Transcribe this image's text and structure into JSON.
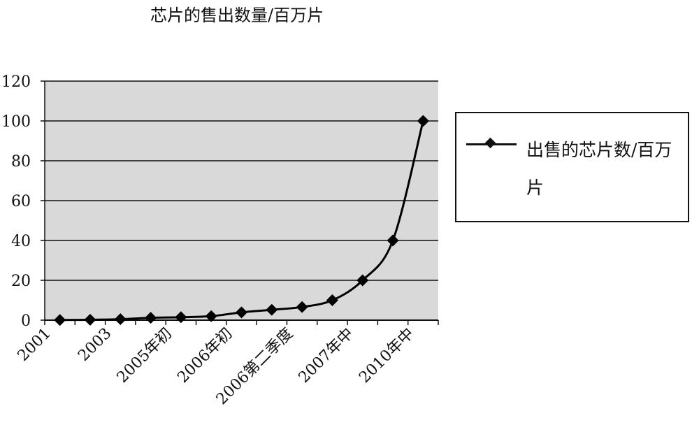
{
  "chart_data": {
    "type": "line",
    "title": "芯片的售出数量/百万片",
    "categories": [
      "2001",
      "",
      "2003",
      "",
      "2005年初",
      "",
      "2006年初",
      "",
      "2006第二季度",
      "",
      "2007年中",
      "",
      "2010年中"
    ],
    "series": [
      {
        "name": "出售的芯片数/百万片",
        "values": [
          0.1,
          0.2,
          0.5,
          1.2,
          1.5,
          2,
          3.9,
          5.2,
          6.6,
          10,
          20,
          40,
          100
        ]
      }
    ],
    "xlabel": "",
    "ylabel": "",
    "ylim": [
      0,
      120
    ],
    "yticks": [
      "0",
      "20",
      "40",
      "60",
      "80",
      "100",
      "120"
    ],
    "grid": true,
    "legend": "right",
    "colors": {
      "plot_bg": "#d9d9d9",
      "line": "#000000"
    }
  }
}
